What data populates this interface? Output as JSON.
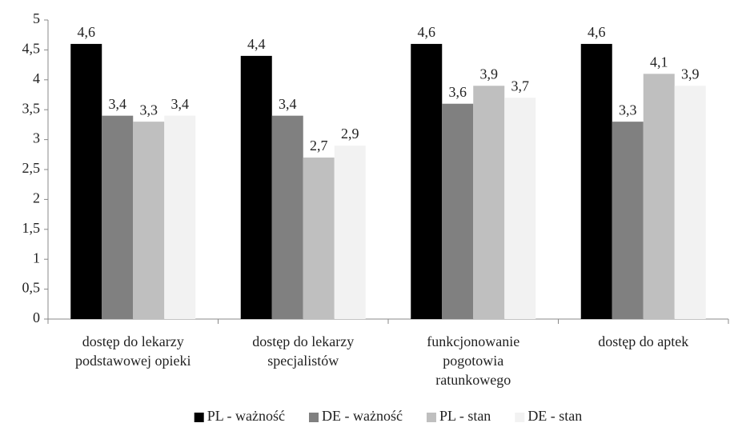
{
  "chart_data": {
    "type": "bar",
    "categories": [
      "dostęp do lekarzy\npodstawowej opieki",
      "dostęp do lekarzy\nspecjalistów",
      "funkcjonowanie\npogotowia\nratunkowego",
      "dostęp do aptek"
    ],
    "series": [
      {
        "name": "PL - ważność",
        "color": "#000000",
        "values": [
          4.6,
          4.4,
          4.6,
          4.6
        ],
        "value_labels": [
          "4,6",
          "4,4",
          "4,6",
          "4,6"
        ]
      },
      {
        "name": "DE - ważność",
        "color": "#808080",
        "values": [
          3.4,
          3.4,
          3.6,
          3.3
        ],
        "value_labels": [
          "3,4",
          "3,4",
          "3,6",
          "3,3"
        ]
      },
      {
        "name": "PL - stan",
        "color": "#bfbfbf",
        "values": [
          3.3,
          2.7,
          3.9,
          4.1
        ],
        "value_labels": [
          "3,3",
          "2,7",
          "3,9",
          "4,1"
        ]
      },
      {
        "name": "DE - stan",
        "color": "#f2f2f2",
        "values": [
          3.4,
          2.9,
          3.7,
          3.9
        ],
        "value_labels": [
          "3,4",
          "2,9",
          "3,7",
          "3,9"
        ]
      }
    ],
    "ylim": [
      0,
      5
    ],
    "yticks": [
      0,
      {
        "value": 0.5,
        "label": "0,5"
      },
      1,
      {
        "value": 1.5,
        "label": "1,5"
      },
      2,
      {
        "value": 2.5,
        "label": "2,5"
      },
      3,
      {
        "value": 3.5,
        "label": "3,5"
      },
      4,
      {
        "value": 4.5,
        "label": "4,5"
      },
      5
    ],
    "grid": false,
    "legend": "bottom"
  }
}
